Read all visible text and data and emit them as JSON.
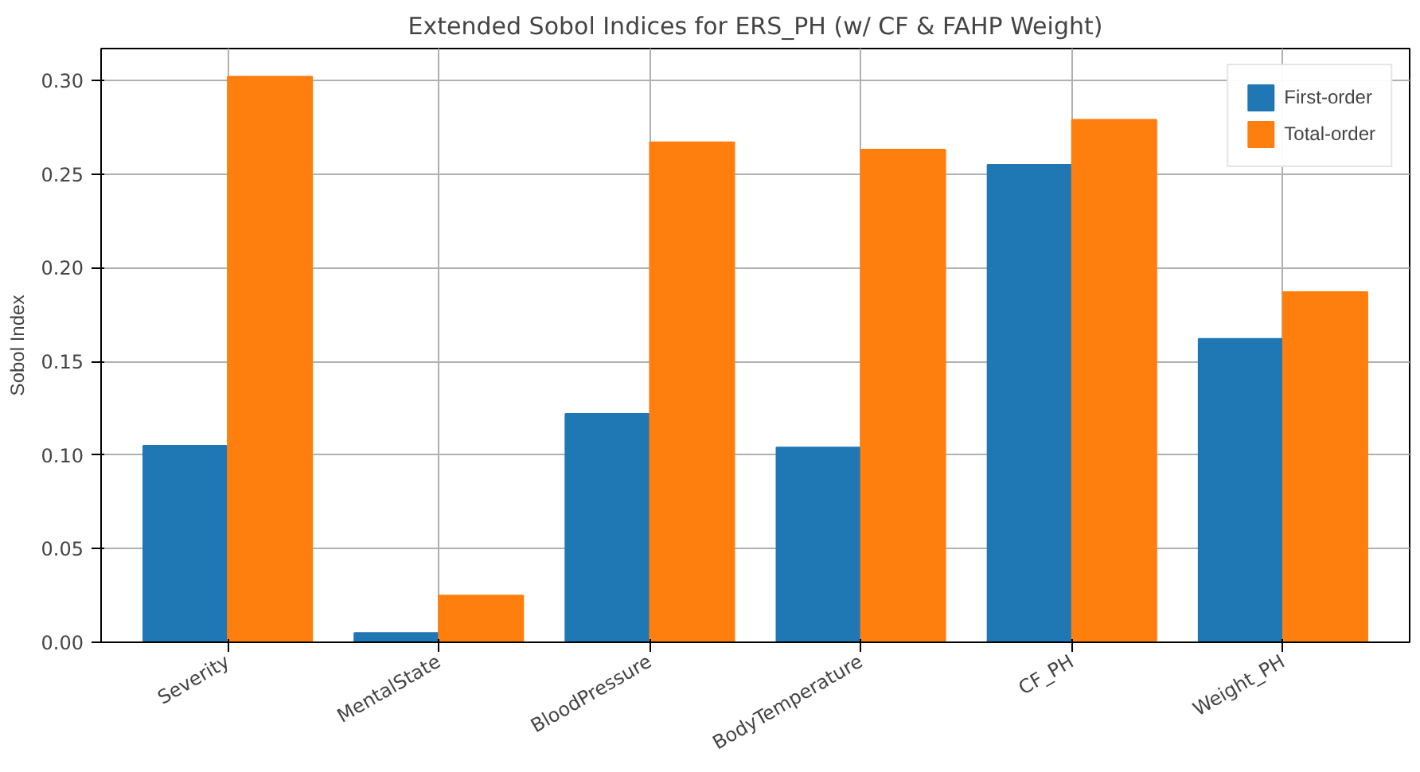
{
  "chart_data": {
    "type": "bar",
    "title": "Extended Sobol Indices for ERS_PH (w/ CF & FAHP Weight)",
    "ylabel": "Sobol Index",
    "categories": [
      "Severity",
      "MentalState",
      "BloodPressure",
      "BodyTemperature",
      "CF_PH",
      "Weight_PH"
    ],
    "series": [
      {
        "name": "First-order",
        "color": "#1f77b4",
        "values": [
          0.105,
          0.005,
          0.122,
          0.104,
          0.255,
          0.162
        ]
      },
      {
        "name": "Total-order",
        "color": "#ff7f0e",
        "values": [
          0.302,
          0.025,
          0.267,
          0.263,
          0.279,
          0.187
        ]
      }
    ],
    "ylim": [
      0,
      0.317
    ],
    "yticks": [
      {
        "value": 0,
        "label": "0.00"
      },
      {
        "value": 0.05,
        "label": "0.05"
      },
      {
        "value": 0.1,
        "label": "0.10"
      },
      {
        "value": 0.15,
        "label": "0.15"
      },
      {
        "value": 0.2,
        "label": "0.20"
      },
      {
        "value": 0.25,
        "label": "0.25"
      },
      {
        "value": 0.3,
        "label": "0.30"
      }
    ],
    "grid": true,
    "legend": "top right"
  }
}
